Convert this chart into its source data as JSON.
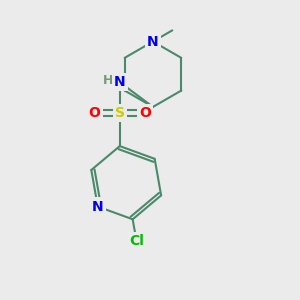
{
  "background_color": "#ebebeb",
  "bond_color": "#4a8a6a",
  "bond_width": 1.5,
  "atom_colors": {
    "N": "#0000ee",
    "S": "#cccc00",
    "O": "#ff0000",
    "Cl": "#00bb00",
    "C": "#4a8a6a",
    "H": "#779977",
    "NH": "#779977"
  },
  "font_size": 10,
  "figsize": [
    3.0,
    3.0
  ],
  "dpi": 100
}
